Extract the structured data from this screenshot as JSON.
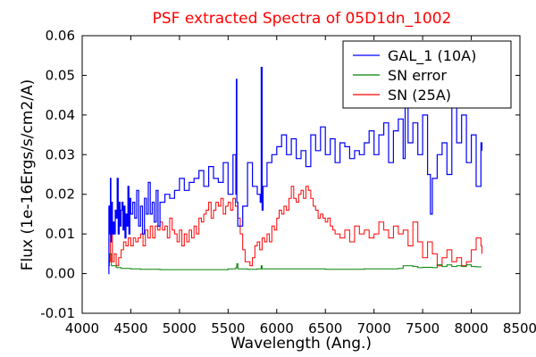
{
  "chart_data": {
    "type": "line",
    "title": "PSF extracted Spectra of 05D1dn_1002",
    "xlabel": "Wavelength (Ang.)",
    "ylabel": "Flux (1e-16Ergs/s/cm2/A)",
    "xlim": [
      4000,
      8500
    ],
    "ylim": [
      -0.01,
      0.06
    ],
    "xticks": [
      4000,
      4500,
      5000,
      5500,
      6000,
      6500,
      7000,
      7500,
      8000,
      8500
    ],
    "yticks": [
      -0.01,
      0.0,
      0.01,
      0.02,
      0.03,
      0.04,
      0.05,
      0.06
    ],
    "xtick_labels": [
      "4000",
      "4500",
      "5000",
      "5500",
      "6000",
      "6500",
      "7000",
      "7500",
      "8000",
      "8500"
    ],
    "ytick_labels": [
      "-0.01",
      "0.00",
      "0.01",
      "0.02",
      "0.03",
      "0.04",
      "0.05",
      "0.06"
    ],
    "legend_position": "top-right",
    "grid": false,
    "series": [
      {
        "name": "GAL_1 (10A)",
        "color": "#0000ff",
        "x": [
          4270,
          4275,
          4285,
          4290,
          4295,
          4300,
          4310,
          4320,
          4330,
          4340,
          4350,
          4360,
          4370,
          4380,
          4390,
          4400,
          4410,
          4420,
          4430,
          4440,
          4450,
          4460,
          4470,
          4480,
          4490,
          4500,
          4520,
          4540,
          4560,
          4580,
          4600,
          4620,
          4640,
          4660,
          4680,
          4700,
          4720,
          4740,
          4760,
          4780,
          4800,
          4850,
          4900,
          4950,
          5000,
          5050,
          5100,
          5150,
          5200,
          5250,
          5300,
          5350,
          5400,
          5450,
          5500,
          5550,
          5580,
          5585,
          5590,
          5600,
          5650,
          5700,
          5750,
          5800,
          5830,
          5840,
          5850,
          5860,
          5900,
          5950,
          6000,
          6050,
          6100,
          6150,
          6200,
          6250,
          6300,
          6350,
          6400,
          6450,
          6500,
          6550,
          6600,
          6650,
          6700,
          6750,
          6800,
          6850,
          6900,
          6950,
          7000,
          7050,
          7100,
          7150,
          7200,
          7250,
          7300,
          7320,
          7350,
          7400,
          7450,
          7500,
          7550,
          7580,
          7600,
          7650,
          7700,
          7750,
          7800,
          7850,
          7900,
          7950,
          8000,
          8050,
          8100,
          8110
        ],
        "y": [
          0.0,
          0.017,
          0.01,
          0.024,
          0.008,
          0.018,
          0.01,
          0.013,
          0.01,
          0.016,
          0.014,
          0.024,
          0.01,
          0.018,
          0.012,
          0.016,
          0.018,
          0.011,
          0.017,
          0.009,
          0.015,
          0.012,
          0.022,
          0.01,
          0.019,
          0.015,
          0.018,
          0.014,
          0.021,
          0.012,
          0.017,
          0.01,
          0.019,
          0.015,
          0.023,
          0.015,
          0.018,
          0.013,
          0.021,
          0.012,
          0.018,
          0.02,
          0.019,
          0.021,
          0.024,
          0.021,
          0.023,
          0.024,
          0.026,
          0.022,
          0.027,
          0.024,
          0.023,
          0.028,
          0.02,
          0.03,
          0.02,
          0.049,
          0.018,
          0.012,
          0.017,
          0.028,
          0.022,
          0.02,
          0.018,
          0.052,
          0.016,
          0.022,
          0.028,
          0.03,
          0.032,
          0.035,
          0.03,
          0.034,
          0.029,
          0.031,
          0.027,
          0.035,
          0.031,
          0.037,
          0.03,
          0.034,
          0.028,
          0.033,
          0.032,
          0.029,
          0.031,
          0.03,
          0.033,
          0.036,
          0.03,
          0.035,
          0.038,
          0.028,
          0.036,
          0.039,
          0.029,
          0.044,
          0.033,
          0.038,
          0.03,
          0.04,
          0.025,
          0.015,
          0.024,
          0.03,
          0.033,
          0.025,
          0.044,
          0.033,
          0.04,
          0.028,
          0.035,
          0.022,
          0.033,
          0.031
        ]
      },
      {
        "name": "SN error",
        "color": "#008000",
        "x": [
          4270,
          4280,
          4300,
          4350,
          4400,
          4500,
          4600,
          4700,
          4800,
          4900,
          5000,
          5100,
          5200,
          5300,
          5400,
          5500,
          5580,
          5590,
          5600,
          5700,
          5800,
          5840,
          5850,
          6000,
          6100,
          6200,
          6300,
          6400,
          6500,
          6600,
          6700,
          6800,
          6900,
          7000,
          7100,
          7200,
          7250,
          7300,
          7400,
          7450,
          7500,
          7600,
          7650,
          7700,
          7750,
          7800,
          7850,
          7900,
          7950,
          8000,
          8050,
          8100
        ],
        "y": [
          0.002,
          0.005,
          0.002,
          0.0015,
          0.0013,
          0.0012,
          0.0011,
          0.0011,
          0.001,
          0.001,
          0.001,
          0.001,
          0.001,
          0.001,
          0.001,
          0.0012,
          0.0015,
          0.0025,
          0.0012,
          0.0011,
          0.0012,
          0.002,
          0.0012,
          0.0012,
          0.0012,
          0.0012,
          0.0012,
          0.0012,
          0.0011,
          0.0011,
          0.0011,
          0.0011,
          0.0012,
          0.0012,
          0.0012,
          0.0012,
          0.0013,
          0.002,
          0.0018,
          0.0015,
          0.0016,
          0.0015,
          0.0022,
          0.0018,
          0.0022,
          0.0018,
          0.002,
          0.0018,
          0.0022,
          0.0018,
          0.0017,
          0.0016
        ]
      },
      {
        "name": "SN (25A)",
        "color": "#ff0000",
        "x": [
          4270,
          4290,
          4310,
          4330,
          4350,
          4375,
          4400,
          4425,
          4450,
          4475,
          4500,
          4525,
          4550,
          4575,
          4600,
          4625,
          4650,
          4675,
          4700,
          4725,
          4750,
          4775,
          4800,
          4825,
          4850,
          4875,
          4900,
          4925,
          4950,
          4975,
          5000,
          5025,
          5050,
          5075,
          5100,
          5125,
          5150,
          5175,
          5200,
          5225,
          5250,
          5275,
          5300,
          5325,
          5350,
          5375,
          5400,
          5425,
          5450,
          5475,
          5500,
          5525,
          5550,
          5575,
          5600,
          5625,
          5650,
          5675,
          5700,
          5725,
          5750,
          5775,
          5800,
          5825,
          5850,
          5875,
          5900,
          5925,
          5950,
          5975,
          6000,
          6025,
          6050,
          6075,
          6100,
          6125,
          6150,
          6175,
          6200,
          6225,
          6250,
          6275,
          6300,
          6325,
          6350,
          6375,
          6400,
          6425,
          6450,
          6475,
          6500,
          6525,
          6550,
          6575,
          6600,
          6650,
          6700,
          6750,
          6800,
          6850,
          6900,
          6950,
          7000,
          7050,
          7100,
          7150,
          7200,
          7250,
          7300,
          7350,
          7400,
          7450,
          7500,
          7550,
          7600,
          7650,
          7700,
          7750,
          7800,
          7850,
          7900,
          7950,
          8000,
          8050,
          8100,
          8110
        ],
        "y": [
          0.003,
          0.01,
          0.003,
          0.005,
          0.002,
          0.004,
          0.006,
          0.008,
          0.007,
          0.009,
          0.007,
          0.009,
          0.008,
          0.009,
          0.01,
          0.007,
          0.011,
          0.009,
          0.012,
          0.009,
          0.012,
          0.011,
          0.013,
          0.011,
          0.012,
          0.009,
          0.014,
          0.011,
          0.01,
          0.008,
          0.011,
          0.007,
          0.01,
          0.008,
          0.011,
          0.009,
          0.012,
          0.01,
          0.014,
          0.013,
          0.015,
          0.016,
          0.018,
          0.014,
          0.016,
          0.018,
          0.017,
          0.019,
          0.015,
          0.017,
          0.018,
          0.016,
          0.019,
          0.017,
          0.014,
          0.01,
          0.006,
          0.003,
          0.003,
          0.002,
          0.004,
          0.007,
          0.008,
          0.006,
          0.009,
          0.008,
          0.01,
          0.008,
          0.012,
          0.011,
          0.014,
          0.016,
          0.015,
          0.017,
          0.016,
          0.019,
          0.022,
          0.019,
          0.018,
          0.02,
          0.021,
          0.019,
          0.022,
          0.021,
          0.019,
          0.017,
          0.016,
          0.014,
          0.015,
          0.014,
          0.013,
          0.014,
          0.012,
          0.011,
          0.01,
          0.009,
          0.011,
          0.008,
          0.012,
          0.01,
          0.011,
          0.009,
          0.01,
          0.013,
          0.011,
          0.009,
          0.012,
          0.01,
          0.011,
          0.007,
          0.013,
          0.008,
          0.004,
          0.008,
          0.005,
          0.002,
          0.004,
          0.006,
          0.003,
          0.004,
          0.002,
          0.003,
          0.006,
          0.009,
          0.007,
          0.005
        ]
      }
    ]
  }
}
